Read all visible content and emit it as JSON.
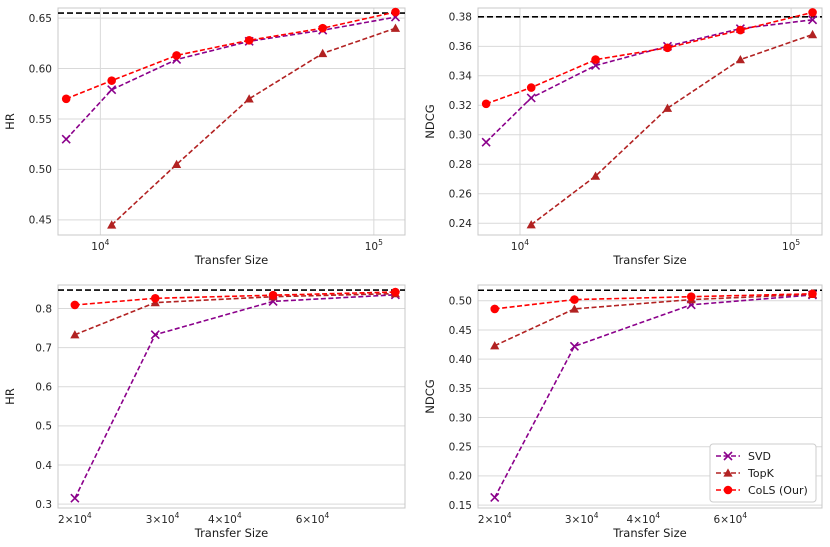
{
  "chart_data": [
    {
      "type": "line",
      "id": "p0",
      "xscale": "log",
      "xlim": [
        7000,
        130000
      ],
      "ylim": [
        0.435,
        0.66
      ],
      "xlabel": "Transfer Size",
      "ylabel": "HR",
      "xticks": [
        {
          "v": 10000,
          "b": "10",
          "e": "4"
        },
        {
          "v": 100000,
          "b": "10",
          "e": "5"
        }
      ],
      "yticks": [
        0.45,
        0.5,
        0.55,
        0.6,
        0.65
      ],
      "ydecimals": 2,
      "vgrid": true,
      "reference_line": 0.655,
      "series": [
        {
          "name": "SVD",
          "color": "#8b008b",
          "marker": "x",
          "x": [
            7500,
            11000,
            19000,
            35000,
            65000,
            120000
          ],
          "y": [
            0.53,
            0.579,
            0.609,
            0.627,
            0.638,
            0.651
          ]
        },
        {
          "name": "TopK",
          "color": "#b22222",
          "marker": "triangle",
          "x": [
            11000,
            19000,
            35000,
            65000,
            120000
          ],
          "y": [
            0.445,
            0.505,
            0.57,
            0.615,
            0.64
          ]
        },
        {
          "name": "CoLS (Our)",
          "color": "#ff0000",
          "marker": "circle",
          "x": [
            7500,
            11000,
            19000,
            35000,
            65000,
            120000
          ],
          "y": [
            0.57,
            0.588,
            0.613,
            0.628,
            0.64,
            0.656
          ]
        }
      ]
    },
    {
      "type": "line",
      "id": "p1",
      "xscale": "log",
      "xlim": [
        7000,
        130000
      ],
      "ylim": [
        0.232,
        0.386
      ],
      "xlabel": "Transfer Size",
      "ylabel": "NDCG",
      "xticks": [
        {
          "v": 10000,
          "b": "10",
          "e": "4"
        },
        {
          "v": 100000,
          "b": "10",
          "e": "5"
        }
      ],
      "yticks": [
        0.24,
        0.26,
        0.28,
        0.3,
        0.32,
        0.34,
        0.36,
        0.38
      ],
      "ydecimals": 2,
      "vgrid": true,
      "reference_line": 0.38,
      "series": [
        {
          "name": "SVD",
          "color": "#8b008b",
          "marker": "x",
          "x": [
            7500,
            11000,
            19000,
            35000,
            65000,
            120000
          ],
          "y": [
            0.295,
            0.325,
            0.347,
            0.36,
            0.372,
            0.378
          ]
        },
        {
          "name": "TopK",
          "color": "#b22222",
          "marker": "triangle",
          "x": [
            11000,
            19000,
            35000,
            65000,
            120000
          ],
          "y": [
            0.239,
            0.272,
            0.318,
            0.351,
            0.368
          ]
        },
        {
          "name": "CoLS (Our)",
          "color": "#ff0000",
          "marker": "circle",
          "x": [
            7500,
            11000,
            19000,
            35000,
            65000,
            120000
          ],
          "y": [
            0.321,
            0.332,
            0.351,
            0.359,
            0.371,
            0.383
          ]
        }
      ]
    },
    {
      "type": "line",
      "id": "p2",
      "xscale": "log",
      "xlim": [
        18500,
        92000
      ],
      "ylim": [
        0.29,
        0.86
      ],
      "xlabel": "Transfer Size",
      "ylabel": "HR",
      "xticks": [
        {
          "v": 20000,
          "b": "2×10",
          "e": "4"
        },
        {
          "v": 30000,
          "b": "3×10",
          "e": "4"
        },
        {
          "v": 40000,
          "b": "4×10",
          "e": "4"
        },
        {
          "v": 60000,
          "b": "6×10",
          "e": "4"
        }
      ],
      "yticks": [
        0.3,
        0.4,
        0.5,
        0.6,
        0.7,
        0.8
      ],
      "ydecimals": 1,
      "vgrid": false,
      "reference_line": 0.847,
      "series": [
        {
          "name": "SVD",
          "color": "#8b008b",
          "marker": "x",
          "x": [
            20000,
            29000,
            50000,
            88000
          ],
          "y": [
            0.315,
            0.733,
            0.818,
            0.835
          ]
        },
        {
          "name": "TopK",
          "color": "#b22222",
          "marker": "triangle",
          "x": [
            20000,
            29000,
            50000,
            88000
          ],
          "y": [
            0.733,
            0.815,
            0.83,
            0.838
          ]
        },
        {
          "name": "CoLS (Our)",
          "color": "#ff0000",
          "marker": "circle",
          "x": [
            20000,
            29000,
            50000,
            88000
          ],
          "y": [
            0.809,
            0.826,
            0.834,
            0.842
          ]
        }
      ]
    },
    {
      "type": "line",
      "id": "p3",
      "xscale": "log",
      "xlim": [
        18500,
        92000
      ],
      "ylim": [
        0.145,
        0.527
      ],
      "xlabel": "Transfer Size",
      "ylabel": "NDCG",
      "xticks": [
        {
          "v": 20000,
          "b": "2×10",
          "e": "4"
        },
        {
          "v": 30000,
          "b": "3×10",
          "e": "4"
        },
        {
          "v": 40000,
          "b": "4×10",
          "e": "4"
        },
        {
          "v": 60000,
          "b": "6×10",
          "e": "4"
        }
      ],
      "yticks": [
        0.15,
        0.2,
        0.25,
        0.3,
        0.35,
        0.4,
        0.45,
        0.5
      ],
      "ydecimals": 2,
      "vgrid": false,
      "reference_line": 0.518,
      "legend": "lower-right",
      "series": [
        {
          "name": "SVD",
          "color": "#8b008b",
          "marker": "x",
          "x": [
            20000,
            29000,
            50000,
            88000
          ],
          "y": [
            0.163,
            0.422,
            0.493,
            0.51
          ]
        },
        {
          "name": "TopK",
          "color": "#b22222",
          "marker": "triangle",
          "x": [
            20000,
            29000,
            50000,
            88000
          ],
          "y": [
            0.423,
            0.486,
            0.502,
            0.511
          ]
        },
        {
          "name": "CoLS (Our)",
          "color": "#ff0000",
          "marker": "circle",
          "x": [
            20000,
            29000,
            50000,
            88000
          ],
          "y": [
            0.486,
            0.502,
            0.507,
            0.512
          ]
        }
      ]
    }
  ]
}
